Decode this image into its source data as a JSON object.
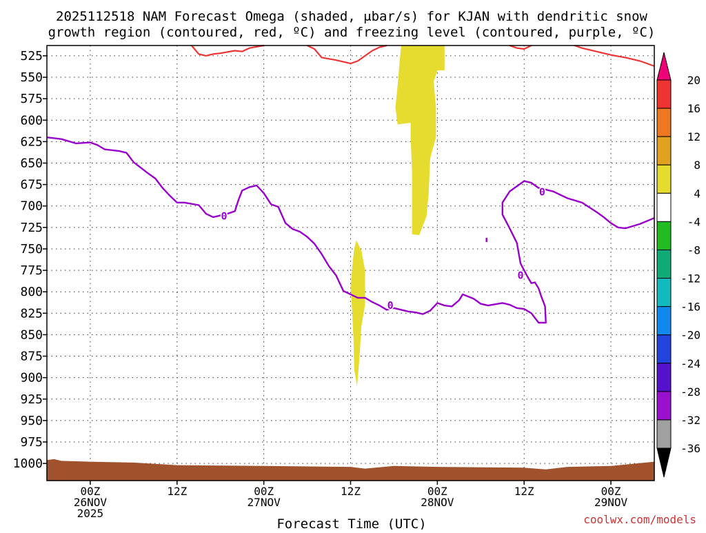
{
  "chart_data": {
    "type": "time-height cross section",
    "title_line1": "2025112518 NAM Forecast Omega (shaded, μbar/s) for KJAN with dendritic snow",
    "title_line2": "growth region (contoured, red, ºC) and freezing level (contoured, purple, ºC)",
    "xlabel": "Forecast Time (UTC)",
    "credit": "coolwx.com/models",
    "y_axis": {
      "unit": "hPa",
      "range": [
        1020,
        513
      ],
      "ticks": [
        525,
        550,
        575,
        600,
        625,
        650,
        675,
        700,
        725,
        750,
        775,
        800,
        825,
        850,
        875,
        900,
        925,
        950,
        975,
        1000
      ]
    },
    "x_axis": {
      "unit": "forecast hour",
      "range": [
        -6,
        78
      ],
      "ticks": [
        {
          "hour": 0,
          "lines": [
            "00Z",
            "26NOV",
            "2025"
          ]
        },
        {
          "hour": 12,
          "lines": [
            "12Z"
          ]
        },
        {
          "hour": 24,
          "lines": [
            "00Z",
            "27NOV"
          ]
        },
        {
          "hour": 36,
          "lines": [
            "12Z"
          ]
        },
        {
          "hour": 48,
          "lines": [
            "00Z",
            "28NOV"
          ]
        },
        {
          "hour": 60,
          "lines": [
            "12Z"
          ]
        },
        {
          "hour": 72,
          "lines": [
            "00Z",
            "29NOV"
          ]
        }
      ]
    },
    "colorbar": {
      "labels": [
        "20",
        "16",
        "12",
        "8",
        "4",
        "-4",
        "-8",
        "-12",
        "-16",
        "-20",
        "-24",
        "-28",
        "-32",
        "-36"
      ],
      "colors": [
        "#ee0077",
        "#ee3333",
        "#ee7722",
        "#e0a020",
        "#e6dc30",
        "#ffffff",
        "#22bb22",
        "#11aa77",
        "#11bbbb",
        "#1188ee",
        "#2244dd",
        "#5511cc",
        "#9911cc",
        "#a0a0a0",
        "#000000"
      ]
    },
    "colors": {
      "omega_shade": "#e6dc30",
      "dendritic_contour": "#ee3333",
      "freezing_contour": "#9900cc",
      "ground": "#a0522d"
    },
    "freezing_level": {
      "label": "0",
      "label_points": [
        [
          18.5,
          711
        ],
        [
          41.5,
          815
        ],
        [
          59.5,
          780
        ],
        [
          62.5,
          683
        ]
      ],
      "main": [
        [
          -6,
          620
        ],
        [
          -4,
          622
        ],
        [
          -2,
          627
        ],
        [
          0,
          626
        ],
        [
          1,
          629
        ],
        [
          2,
          634
        ],
        [
          4,
          636
        ],
        [
          5,
          638
        ],
        [
          6,
          649
        ],
        [
          8,
          662
        ],
        [
          9,
          668
        ],
        [
          10,
          679
        ],
        [
          11,
          688
        ],
        [
          12,
          696
        ],
        [
          13,
          696
        ],
        [
          15,
          699
        ],
        [
          16,
          709
        ],
        [
          17,
          713
        ],
        [
          19,
          709
        ],
        [
          20,
          706
        ],
        [
          20.5,
          693
        ],
        [
          21,
          682
        ],
        [
          22,
          678
        ],
        [
          23,
          676
        ],
        [
          24,
          685
        ],
        [
          25,
          698
        ],
        [
          26,
          701
        ],
        [
          27,
          720
        ],
        [
          28,
          727
        ],
        [
          29,
          730
        ],
        [
          30,
          736
        ],
        [
          31,
          744
        ],
        [
          32,
          756
        ],
        [
          33,
          770
        ],
        [
          34,
          781
        ],
        [
          35,
          799
        ],
        [
          36,
          803
        ],
        [
          37,
          807
        ],
        [
          38,
          807
        ],
        [
          39,
          812
        ],
        [
          40,
          816
        ],
        [
          41,
          821
        ],
        [
          42,
          819
        ],
        [
          43,
          821
        ],
        [
          44,
          823
        ],
        [
          45,
          824
        ],
        [
          46,
          826
        ],
        [
          47,
          822
        ],
        [
          48,
          813
        ],
        [
          49,
          816
        ],
        [
          50,
          817
        ],
        [
          51,
          810
        ],
        [
          51.5,
          803
        ],
        [
          53,
          808
        ],
        [
          54,
          814
        ],
        [
          55,
          816
        ],
        [
          57,
          813
        ],
        [
          58,
          815
        ],
        [
          59,
          819
        ],
        [
          60,
          820
        ],
        [
          61,
          825
        ],
        [
          62,
          836
        ],
        [
          63,
          836
        ],
        [
          62.9,
          817
        ],
        [
          62.4,
          806
        ],
        [
          62,
          796
        ],
        [
          61.5,
          789
        ],
        [
          61,
          790
        ],
        [
          60.5,
          783
        ],
        [
          59.5,
          767
        ],
        [
          59,
          743
        ],
        [
          58,
          726
        ],
        [
          57,
          710
        ],
        [
          57,
          696
        ],
        [
          58,
          683
        ],
        [
          59,
          677
        ],
        [
          60,
          671
        ],
        [
          61,
          673
        ],
        [
          62,
          679
        ],
        [
          63,
          681
        ],
        [
          64,
          683
        ],
        [
          66,
          691
        ],
        [
          68,
          696
        ],
        [
          70,
          707
        ],
        [
          71,
          713
        ],
        [
          72,
          720
        ],
        [
          73,
          725
        ],
        [
          74,
          726
        ],
        [
          76,
          721
        ],
        [
          78,
          714
        ]
      ],
      "dot": [
        [
          54.8,
          737
        ],
        [
          54.8,
          742
        ]
      ]
    },
    "dendritic": {
      "segments": [
        [
          [
            14,
            513
          ],
          [
            15,
            523
          ],
          [
            16,
            525
          ],
          [
            17,
            523
          ],
          [
            18,
            522
          ],
          [
            20,
            519
          ],
          [
            21,
            520
          ],
          [
            22,
            516
          ],
          [
            24,
            513
          ]
        ],
        [
          [
            30,
            513
          ],
          [
            31,
            517
          ],
          [
            32,
            527
          ],
          [
            34,
            530
          ],
          [
            36,
            534
          ],
          [
            37,
            531
          ],
          [
            39,
            519
          ],
          [
            40,
            515
          ],
          [
            41,
            513
          ]
        ],
        [
          [
            58,
            513
          ],
          [
            59,
            516
          ],
          [
            60,
            517
          ],
          [
            61,
            513
          ]
        ],
        [
          [
            67,
            513
          ],
          [
            68,
            516
          ],
          [
            70,
            520
          ],
          [
            71,
            522
          ],
          [
            72,
            524
          ],
          [
            74,
            527
          ],
          [
            76,
            531
          ],
          [
            78,
            537
          ]
        ]
      ]
    },
    "omega_regions": [
      [
        [
          43,
          513
        ],
        [
          49,
          513
        ],
        [
          49,
          542
        ],
        [
          48,
          542
        ],
        [
          47.5,
          555
        ],
        [
          47.8,
          585
        ],
        [
          47.8,
          620
        ],
        [
          47,
          645
        ],
        [
          46.8,
          685
        ],
        [
          46.5,
          712
        ],
        [
          45.5,
          734
        ],
        [
          44.5,
          733
        ],
        [
          44.5,
          700
        ],
        [
          44.5,
          660
        ],
        [
          44.3,
          620
        ],
        [
          44.3,
          603
        ],
        [
          42.5,
          605
        ],
        [
          42.2,
          585
        ],
        [
          42.5,
          560
        ],
        [
          42.8,
          530
        ]
      ],
      [
        [
          36.8,
          740
        ],
        [
          37.5,
          752
        ],
        [
          38,
          775
        ],
        [
          38,
          815
        ],
        [
          37.5,
          840
        ],
        [
          37.2,
          880
        ],
        [
          36.9,
          910
        ],
        [
          36.5,
          890
        ],
        [
          36.4,
          855
        ],
        [
          36.2,
          820
        ],
        [
          36,
          795
        ],
        [
          36.3,
          765
        ],
        [
          36.5,
          750
        ]
      ]
    ],
    "ground": {
      "top": [
        [
          -6,
          996
        ],
        [
          -5,
          995
        ],
        [
          -4,
          997
        ],
        [
          0,
          998
        ],
        [
          6,
          999
        ],
        [
          10,
          1001
        ],
        [
          12,
          1002
        ],
        [
          24,
          1003
        ],
        [
          36,
          1004
        ],
        [
          38,
          1006
        ],
        [
          42,
          1003
        ],
        [
          48,
          1004
        ],
        [
          60,
          1005
        ],
        [
          63,
          1007
        ],
        [
          66,
          1004
        ],
        [
          72,
          1003
        ],
        [
          78,
          998
        ]
      ],
      "bottom": 1020
    }
  }
}
